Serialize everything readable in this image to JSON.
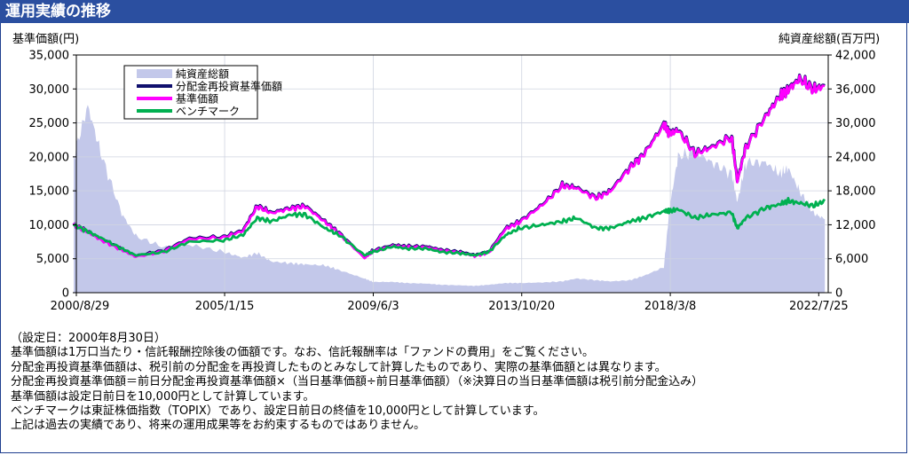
{
  "header": {
    "title": "運用実績の推移"
  },
  "chart_data": {
    "type": "area+line",
    "y_left_label": "基準価額(円)",
    "y_right_label": "純資産総額(百万円)",
    "y_left_ticks": [
      "35,000",
      "30,000",
      "25,000",
      "20,000",
      "15,000",
      "10,000",
      "5,000",
      "0"
    ],
    "y_right_ticks": [
      "42,000",
      "36,000",
      "30,000",
      "24,000",
      "18,000",
      "12,000",
      "6,000",
      "0"
    ],
    "ylim_left": [
      0,
      35000
    ],
    "ylim_right": [
      0,
      42000
    ],
    "x_ticks": [
      "2000/8/29",
      "2005/1/15",
      "2009/6/3",
      "2013/10/20",
      "2018/3/8",
      "2022/7/25"
    ],
    "grid": true,
    "legend_position": "top-left",
    "colors": {
      "net_assets": "#c3c8ea",
      "reinvested": "#10106e",
      "nav": "#ff00ff",
      "benchmark": "#00b050"
    },
    "x": [
      "2000-08",
      "2001-01",
      "2001-06",
      "2002-01",
      "2002-06",
      "2003-04",
      "2004-01",
      "2005-01",
      "2005-08",
      "2006-01",
      "2006-06",
      "2007-01",
      "2007-06",
      "2008-01",
      "2008-06",
      "2009-03",
      "2009-06",
      "2010-01",
      "2010-06",
      "2011-01",
      "2011-06",
      "2012-01",
      "2012-06",
      "2012-11",
      "2013-05",
      "2013-10",
      "2014-06",
      "2015-01",
      "2015-06",
      "2016-01",
      "2016-06",
      "2017-01",
      "2017-06",
      "2018-01",
      "2018-03",
      "2018-06",
      "2018-12",
      "2019-06",
      "2020-01",
      "2020-03",
      "2020-06",
      "2021-01",
      "2021-06",
      "2021-09",
      "2022-01",
      "2022-06",
      "2022-10"
    ],
    "series": [
      {
        "name": "純資産総額",
        "axis": "right",
        "values": [
          24000,
          33000,
          24000,
          14000,
          10000,
          8000,
          8500,
          7200,
          6200,
          7000,
          5500,
          5200,
          5000,
          4800,
          4000,
          2500,
          1900,
          1900,
          1700,
          1600,
          1400,
          1300,
          1200,
          1400,
          1700,
          1700,
          1800,
          2000,
          2500,
          2200,
          2000,
          2200,
          3000,
          4500,
          15000,
          24000,
          25000,
          23000,
          21000,
          16000,
          23000,
          23000,
          21000,
          22000,
          18000,
          14000,
          13000
        ]
      },
      {
        "name": "分配金再投資基準価額",
        "axis": "left",
        "values": [
          10000,
          9000,
          7800,
          6400,
          5400,
          6200,
          8000,
          8200,
          9200,
          12800,
          11800,
          12500,
          12800,
          10500,
          8800,
          5200,
          6200,
          7000,
          6800,
          6800,
          6300,
          6000,
          5500,
          6000,
          9500,
          10500,
          13000,
          15800,
          15500,
          14000,
          15000,
          18500,
          20500,
          24800,
          23500,
          24000,
          20500,
          21500,
          23000,
          16500,
          21500,
          26000,
          29000,
          30000,
          31500,
          30000,
          30500
        ]
      },
      {
        "name": "基準価額",
        "axis": "left",
        "values": [
          10000,
          8900,
          7700,
          6300,
          5300,
          6100,
          7900,
          8100,
          9100,
          12700,
          11700,
          12400,
          12700,
          10400,
          8700,
          5100,
          6100,
          6900,
          6700,
          6700,
          6200,
          5900,
          5400,
          5900,
          9400,
          10400,
          12900,
          15700,
          15400,
          13900,
          14900,
          18400,
          20400,
          24700,
          23400,
          23900,
          20400,
          21400,
          22900,
          16400,
          21400,
          25900,
          28900,
          29900,
          31400,
          29900,
          30400
        ]
      },
      {
        "name": "ベンチマーク",
        "axis": "left",
        "values": [
          10000,
          9000,
          8000,
          6500,
          5500,
          6000,
          7500,
          7700,
          8500,
          11000,
          10500,
          11500,
          11500,
          9500,
          8500,
          5500,
          6000,
          6800,
          6500,
          6500,
          6000,
          5800,
          5500,
          6000,
          8500,
          9500,
          10000,
          10500,
          11000,
          9500,
          9500,
          10500,
          11000,
          12000,
          12000,
          12300,
          11000,
          11500,
          11800,
          9500,
          11000,
          12500,
          13000,
          13500,
          13200,
          12800,
          13500
        ]
      }
    ]
  },
  "notes": [
    "（設定日：2000年8月30日）",
    "基準価額は1万口当たり・信託報酬控除後の価額です。なお、信託報酬率は「ファンドの費用」をご覧ください。",
    "分配金再投資基準価額は、税引前の分配金を再投資したものとみなして計算したものであり、実際の基準価額とは異なります。",
    "分配金再投資基準価額＝前日分配金再投資基準価額×（当日基準価額÷前日基準価額）（※決算日の当日基準価額は税引前分配金込み）",
    "基準価額は設定日前日を10,000円として計算しています。",
    "ベンチマークは東証株価指数（TOPIX）であり、設定日前日の終値を10,000円として計算しています。",
    "上記は過去の実績であり、将来の運用成果等をお約束するものではありません。"
  ]
}
